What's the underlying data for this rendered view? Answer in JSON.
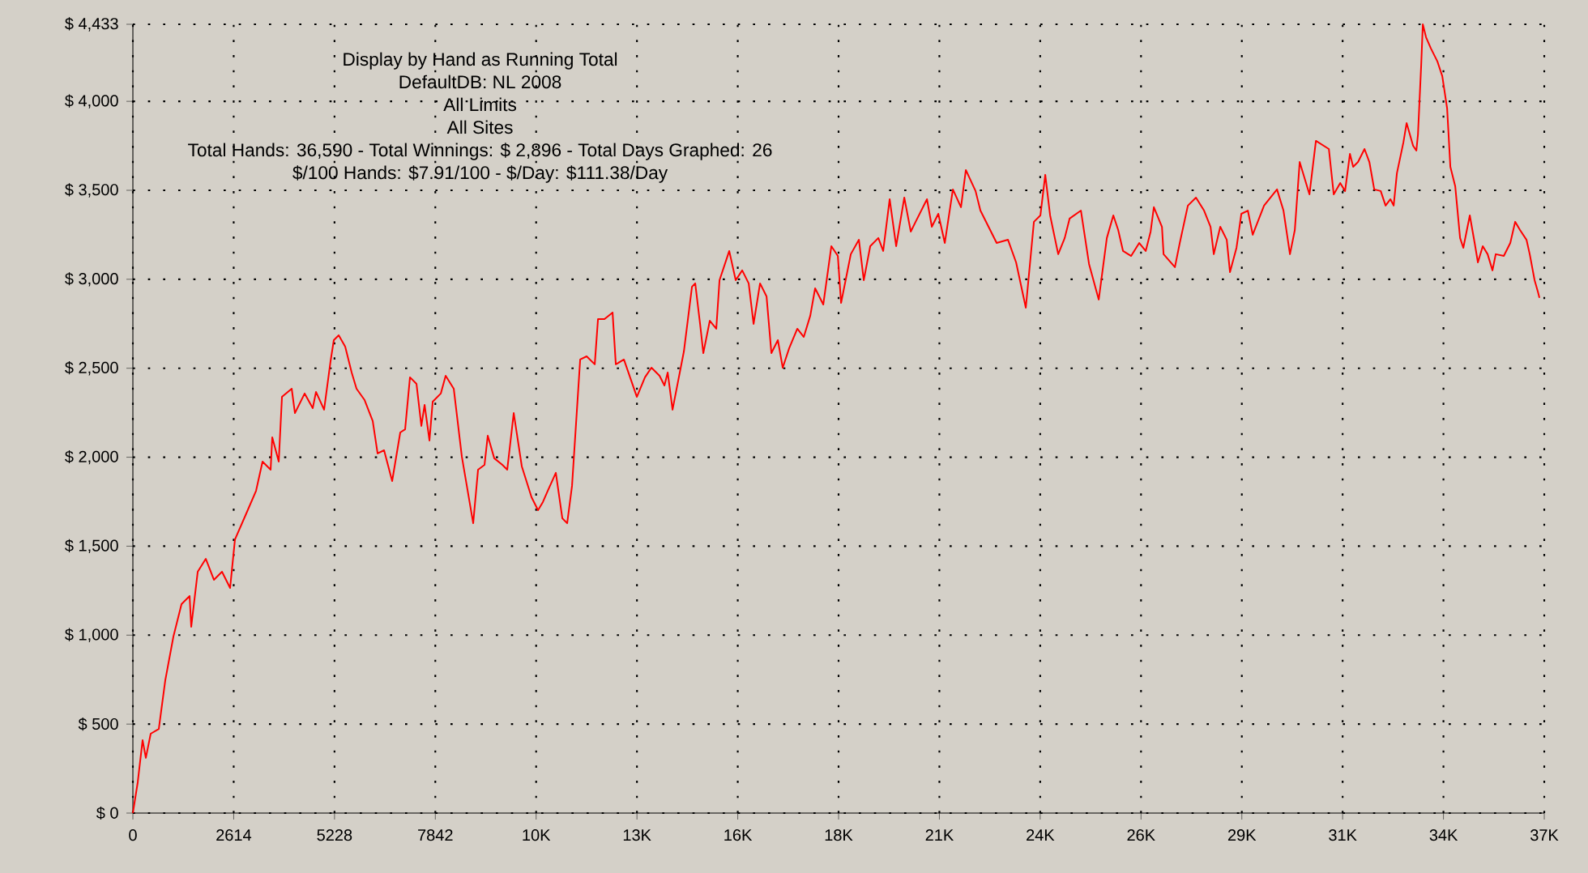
{
  "chart_data": {
    "type": "line",
    "title": "Display by Hand as Running Total",
    "subtitle": "DefaultDB: NL 2008",
    "annotations": [
      "All Limits",
      "All Sites",
      "Total Hands: 36,590 - Total Winnings: $ 2,896 - Total Days Graphed: 26",
      "$/100 Hands: $7.91/100 - $/Day: $111.38/Day"
    ],
    "x": [
      0,
      126,
      252,
      336,
      462,
      672,
      840,
      1051,
      1261,
      1471,
      1513,
      1681,
      1891,
      2101,
      2311,
      2521,
      2647,
      2941,
      3194,
      3362,
      3572,
      3614,
      3782,
      3866,
      4118,
      4202,
      4454,
      4664,
      4748,
      4958,
      5126,
      5210,
      5337,
      5505,
      5673,
      5799,
      6009,
      6219,
      6345,
      6513,
      6723,
      6933,
      7059,
      7185,
      7354,
      7480,
      7564,
      7690,
      7774,
      7984,
      8110,
      8320,
      8530,
      8824,
      8950,
      9118,
      9202,
      9370,
      9581,
      9707,
      9875,
      10085,
      10337,
      10505,
      10631,
      10757,
      10967,
      11135,
      11261,
      11387,
      11598,
      11766,
      11976,
      12060,
      12228,
      12438,
      12522,
      12732,
      13068,
      13278,
      13446,
      13656,
      13783,
      13867,
      13993,
      14287,
      14497,
      14581,
      14707,
      14791,
      14959,
      15127,
      15211,
      15463,
      15631,
      15799,
      15967,
      16094,
      16262,
      16430,
      16556,
      16724,
      16850,
      17018,
      17228,
      17396,
      17564,
      17690,
      17901,
      18111,
      18279,
      18363,
      18489,
      18615,
      18825,
      18951,
      19119,
      19329,
      19455,
      19623,
      19791,
      20002,
      20170,
      20296,
      20590,
      20716,
      20884,
      21052,
      21262,
      21472,
      21598,
      21850,
      21976,
      22397,
      22691,
      22901,
      23153,
      23363,
      23531,
      23657,
      23783,
      23993,
      24162,
      24288,
      24582,
      24792,
      25044,
      25254,
      25422,
      25548,
      25674,
      25884,
      26094,
      26262,
      26389,
      26473,
      26683,
      26725,
      27019,
      27145,
      27355,
      27565,
      27775,
      27943,
      28027,
      28195,
      28363,
      28447,
      28616,
      28742,
      28910,
      29036,
      29330,
      29666,
      29834,
      30002,
      30128,
      30254,
      30507,
      30675,
      31011,
      31137,
      31305,
      31431,
      31557,
      31641,
      31767,
      31935,
      32061,
      32187,
      32355,
      32481,
      32607,
      32691,
      32775,
      32943,
      33027,
      33195,
      33279,
      33321,
      33405,
      33447,
      33531,
      33657,
      33825,
      33951,
      34077,
      34161,
      34287,
      34413,
      34497,
      34665,
      34791,
      34875,
      35001,
      35127,
      35253,
      35337,
      35547,
      35715,
      35841,
      35967,
      36135,
      36219,
      36345,
      36429,
      36471
    ],
    "values": [
      0,
      173,
      410,
      310,
      446,
      473,
      746,
      992,
      1174,
      1220,
      1047,
      1356,
      1429,
      1311,
      1356,
      1265,
      1538,
      1684,
      1811,
      1975,
      1930,
      2112,
      1975,
      2339,
      2385,
      2248,
      2358,
      2276,
      2367,
      2267,
      2540,
      2658,
      2685,
      2622,
      2476,
      2385,
      2321,
      2203,
      2021,
      2039,
      1866,
      2139,
      2157,
      2449,
      2412,
      2176,
      2294,
      2094,
      2312,
      2358,
      2458,
      2385,
      2003,
      1629,
      1930,
      1957,
      2121,
      1994,
      1957,
      1930,
      2248,
      1948,
      1775,
      1702,
      1748,
      1811,
      1912,
      1657,
      1629,
      1839,
      2549,
      2567,
      2522,
      2776,
      2776,
      2813,
      2522,
      2549,
      2339,
      2449,
      2503,
      2458,
      2403,
      2476,
      2267,
      2594,
      2958,
      2977,
      2749,
      2585,
      2767,
      2722,
      2995,
      3159,
      2995,
      3050,
      2977,
      2749,
      2977,
      2904,
      2585,
      2658,
      2503,
      2613,
      2722,
      2676,
      2795,
      2949,
      2858,
      3186,
      3131,
      2867,
      3004,
      3141,
      3222,
      2995,
      3186,
      3232,
      3159,
      3450,
      3186,
      3459,
      3268,
      3323,
      3450,
      3295,
      3368,
      3204,
      3505,
      3405,
      3614,
      3496,
      3386,
      3204,
      3222,
      3095,
      2840,
      3323,
      3359,
      3587,
      3359,
      3141,
      3232,
      3341,
      3386,
      3086,
      2886,
      3232,
      3359,
      3277,
      3159,
      3131,
      3204,
      3159,
      3268,
      3405,
      3295,
      3141,
      3068,
      3204,
      3414,
      3459,
      3386,
      3295,
      3141,
      3295,
      3222,
      3040,
      3177,
      3368,
      3386,
      3250,
      3414,
      3505,
      3386,
      3141,
      3277,
      3659,
      3477,
      3778,
      3732,
      3477,
      3541,
      3496,
      3705,
      3632,
      3659,
      3732,
      3659,
      3505,
      3496,
      3414,
      3450,
      3414,
      3596,
      3769,
      3878,
      3750,
      3723,
      3814,
      4206,
      4433,
      4360,
      4297,
      4224,
      4142,
      3960,
      3632,
      3523,
      3232,
      3177,
      3359,
      3204,
      3095,
      3186,
      3141,
      3050,
      3141,
      3131,
      3204,
      3323,
      3277,
      3222,
      3141,
      2995,
      2931,
      2896
    ],
    "color": "#ff0000",
    "marker": "none",
    "line_style": "solid",
    "grid": true,
    "xlim": [
      0,
      36596
    ],
    "xticks": [
      0,
      2614,
      5228,
      7842,
      {
        "value": 10456,
        "label": "10K"
      },
      {
        "value": 13070,
        "label": "13K"
      },
      {
        "value": 15684,
        "label": "16K"
      },
      {
        "value": 18298,
        "label": "18K"
      },
      {
        "value": 20912,
        "label": "21K"
      },
      {
        "value": 23526,
        "label": "24K"
      },
      {
        "value": 26140,
        "label": "26K"
      },
      {
        "value": 28754,
        "label": "29K"
      },
      {
        "value": 31368,
        "label": "31K"
      },
      {
        "value": 33982,
        "label": "34K"
      },
      {
        "value": 36596,
        "label": "37K"
      }
    ],
    "ylim": [
      0,
      4433
    ],
    "yticks": [
      {
        "value": 0,
        "label": "$ 0"
      },
      {
        "value": 500,
        "label": "$ 500"
      },
      {
        "value": 1000,
        "label": "$ 1,000"
      },
      {
        "value": 1500,
        "label": "$ 1,500"
      },
      {
        "value": 2000,
        "label": "$ 2,000"
      },
      {
        "value": 2500,
        "label": "$ 2,500"
      },
      {
        "value": 3000,
        "label": "$ 3,000"
      },
      {
        "value": 3500,
        "label": "$ 3,500"
      },
      {
        "value": 4000,
        "label": "$ 4,000"
      },
      {
        "value": 4433,
        "label": "$ 4,433"
      }
    ]
  }
}
